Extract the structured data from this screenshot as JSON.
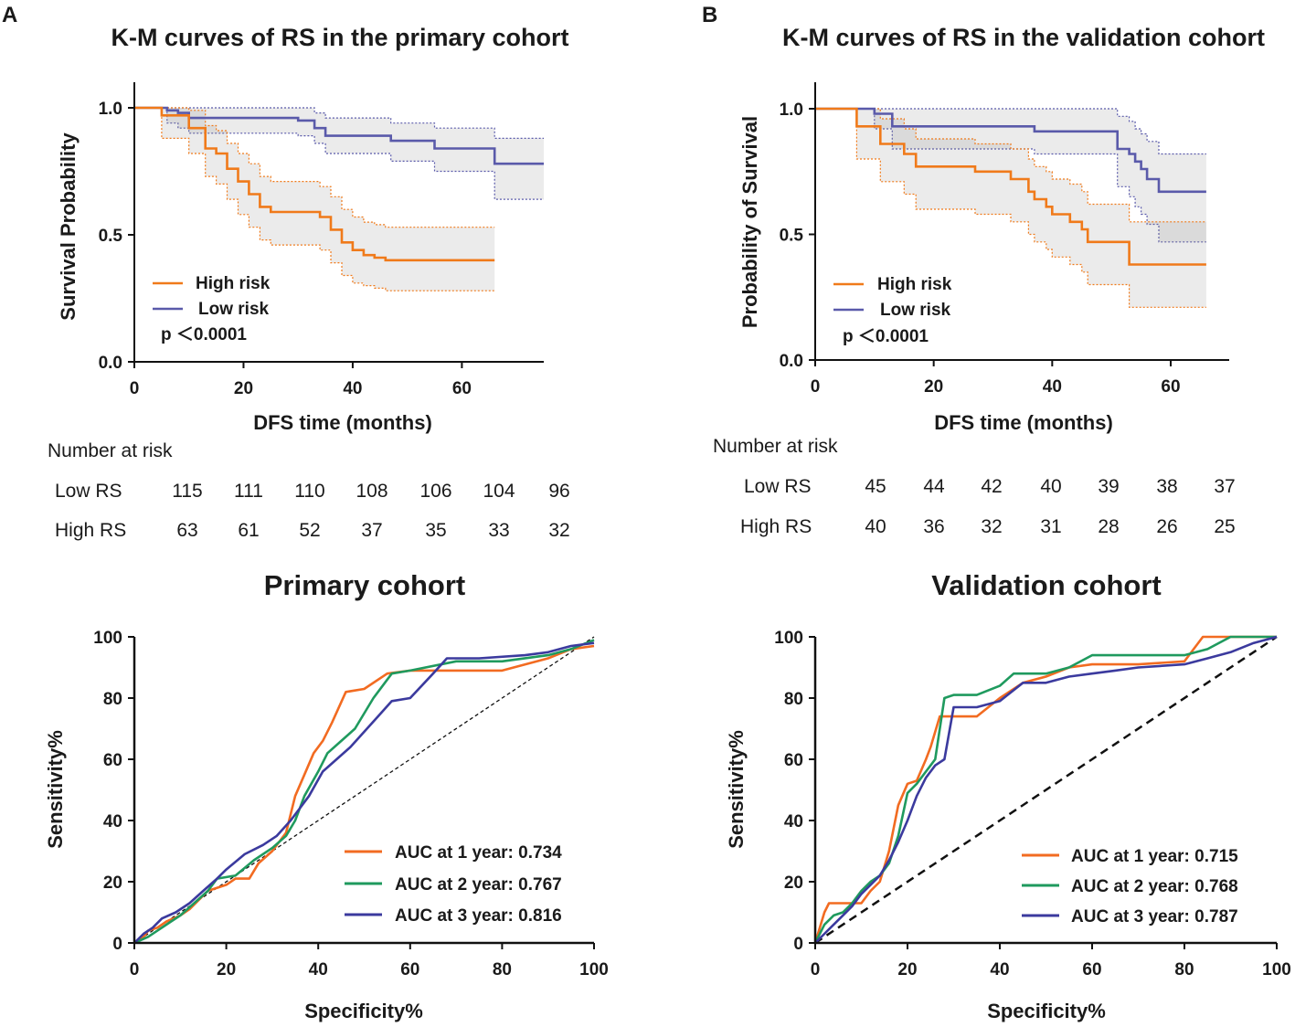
{
  "panels": {
    "A": {
      "letter": "A",
      "km": {
        "title": "K-M curves of RS in the primary cohort",
        "xlabel": "DFS time (months)",
        "ylabel": "Survival Probability",
        "xlim": [
          0,
          75
        ],
        "ylim": [
          0,
          1.05
        ],
        "xticks": [
          "0",
          "20",
          "40",
          "60"
        ],
        "yticks": [
          "0.0",
          "0.5",
          "1.0"
        ],
        "pvalue": "p ＜0.0001",
        "legend": [
          {
            "name": "High risk",
            "color": "#f07a1a"
          },
          {
            "name": "Low risk",
            "color": "#5a5aaa"
          }
        ],
        "risk_table": {
          "header": "Number at risk",
          "rows": [
            {
              "label": "Low RS",
              "values": [
                "115",
                "111",
                "110",
                "108",
                "106",
                "104",
                "96"
              ]
            },
            {
              "label": "High RS",
              "values": [
                "63",
                "61",
                "52",
                "37",
                "35",
                "33",
                "32"
              ]
            }
          ]
        }
      },
      "roc": {
        "title": "Primary cohort",
        "xlabel": "Specificity%",
        "ylabel": "Sensitivity%",
        "xticks": [
          "0",
          "20",
          "40",
          "60",
          "80",
          "100"
        ],
        "yticks": [
          "0",
          "20",
          "40",
          "60",
          "80",
          "100"
        ],
        "legend": [
          {
            "label": "AUC at 1 year: 0.734",
            "color": "#f26b21"
          },
          {
            "label": "AUC at 2 year: 0.767",
            "color": "#1f9a5e"
          },
          {
            "label": "AUC at 3 year: 0.816",
            "color": "#3b3a9e"
          }
        ]
      }
    },
    "B": {
      "letter": "B",
      "km": {
        "title": "K-M curves of RS in the validation cohort",
        "xlabel": "DFS time (months)",
        "ylabel": "Probability of Survival",
        "xlim": [
          0,
          68
        ],
        "ylim": [
          0,
          1.05
        ],
        "xticks": [
          "0",
          "20",
          "40",
          "60"
        ],
        "yticks": [
          "0.0",
          "0.5",
          "1.0"
        ],
        "pvalue": "p ＜0.0001",
        "legend": [
          {
            "name": "High risk",
            "color": "#f07a1a"
          },
          {
            "name": "Low risk",
            "color": "#5a5aaa"
          }
        ],
        "risk_table": {
          "header": "Number at risk",
          "rows": [
            {
              "label": "Low RS",
              "values": [
                "45",
                "44",
                "42",
                "40",
                "39",
                "38",
                "37"
              ]
            },
            {
              "label": "High RS",
              "values": [
                "40",
                "36",
                "32",
                "31",
                "28",
                "26",
                "25"
              ]
            }
          ]
        }
      },
      "roc": {
        "title": "Validation cohort",
        "xlabel": "Specificity%",
        "ylabel": "Sensitivity%",
        "xticks": [
          "0",
          "20",
          "40",
          "60",
          "80",
          "100"
        ],
        "yticks": [
          "0",
          "20",
          "40",
          "60",
          "80",
          "100"
        ],
        "legend": [
          {
            "label": "AUC at 1 year: 0.715",
            "color": "#f26b21"
          },
          {
            "label": "AUC at 2 year: 0.768",
            "color": "#1f9a5e"
          },
          {
            "label": "AUC at 3 year: 0.787",
            "color": "#3b3a9e"
          }
        ]
      }
    }
  },
  "chart_data": [
    {
      "type": "line",
      "id": "km-primary",
      "title": "K-M curves of RS in the primary cohort",
      "xlabel": "DFS time (months)",
      "ylabel": "Survival Probability",
      "xlim": [
        0,
        75
      ],
      "ylim": [
        0,
        1.05
      ],
      "series": [
        {
          "name": "Low risk",
          "color": "#5a5aaa",
          "step": true,
          "x": [
            0,
            6,
            8,
            10,
            30,
            33,
            35,
            47,
            55,
            66,
            75
          ],
          "y": [
            1.0,
            0.99,
            0.98,
            0.96,
            0.95,
            0.92,
            0.89,
            0.87,
            0.84,
            0.78,
            0.78
          ],
          "ci_upper": [
            1.0,
            1.0,
            1.0,
            1.0,
            1.0,
            0.98,
            0.96,
            0.94,
            0.92,
            0.88,
            0.88
          ],
          "ci_lower": [
            1.0,
            0.94,
            0.92,
            0.9,
            0.89,
            0.86,
            0.82,
            0.79,
            0.75,
            0.64,
            0.64
          ]
        },
        {
          "name": "High risk",
          "color": "#f07a1a",
          "step": true,
          "x": [
            0,
            5,
            10,
            13,
            15,
            17,
            19,
            21,
            23,
            25,
            28,
            31,
            34,
            36,
            38,
            40,
            42,
            44,
            46,
            66
          ],
          "y": [
            1.0,
            0.97,
            0.92,
            0.84,
            0.82,
            0.76,
            0.71,
            0.66,
            0.61,
            0.59,
            0.59,
            0.59,
            0.57,
            0.52,
            0.47,
            0.44,
            0.42,
            0.41,
            0.4,
            0.4
          ],
          "ci_upper": [
            1.0,
            1.0,
            0.99,
            0.93,
            0.91,
            0.86,
            0.82,
            0.78,
            0.73,
            0.71,
            0.71,
            0.71,
            0.69,
            0.65,
            0.6,
            0.57,
            0.55,
            0.54,
            0.53,
            0.53
          ],
          "ci_lower": [
            1.0,
            0.88,
            0.82,
            0.73,
            0.7,
            0.64,
            0.58,
            0.53,
            0.48,
            0.46,
            0.46,
            0.46,
            0.44,
            0.39,
            0.34,
            0.31,
            0.3,
            0.29,
            0.28,
            0.28
          ]
        }
      ]
    },
    {
      "type": "line",
      "id": "km-validation",
      "title": "K-M curves of RS in the validation cohort",
      "xlabel": "DFS time (months)",
      "ylabel": "Probability of Survival",
      "xlim": [
        0,
        68
      ],
      "ylim": [
        0,
        1.05
      ],
      "series": [
        {
          "name": "Low risk",
          "color": "#5a5aaa",
          "step": true,
          "x": [
            0,
            10,
            13,
            37,
            51,
            53,
            54,
            55,
            56,
            58,
            66
          ],
          "y": [
            1.0,
            0.98,
            0.93,
            0.91,
            0.84,
            0.82,
            0.79,
            0.76,
            0.72,
            0.67,
            0.67
          ],
          "ci_upper": [
            1.0,
            1.0,
            1.0,
            1.0,
            0.97,
            0.95,
            0.92,
            0.9,
            0.87,
            0.82,
            0.82
          ],
          "ci_lower": [
            1.0,
            0.92,
            0.84,
            0.82,
            0.69,
            0.65,
            0.61,
            0.58,
            0.54,
            0.47,
            0.47
          ],
          "step_note": "drawn as stepped line"
        },
        {
          "name": "High risk",
          "color": "#f07a1a",
          "step": true,
          "x": [
            0,
            7,
            11,
            15,
            17,
            27,
            33,
            36,
            37,
            39,
            40,
            43,
            45,
            46,
            53,
            66
          ],
          "y": [
            1.0,
            0.93,
            0.86,
            0.82,
            0.77,
            0.75,
            0.72,
            0.67,
            0.64,
            0.61,
            0.58,
            0.55,
            0.52,
            0.47,
            0.38,
            0.38
          ],
          "ci_upper": [
            1.0,
            1.0,
            0.96,
            0.92,
            0.88,
            0.86,
            0.84,
            0.8,
            0.77,
            0.75,
            0.72,
            0.7,
            0.67,
            0.62,
            0.55,
            0.55
          ],
          "ci_lower": [
            1.0,
            0.8,
            0.71,
            0.66,
            0.6,
            0.58,
            0.55,
            0.5,
            0.47,
            0.44,
            0.41,
            0.38,
            0.35,
            0.3,
            0.21,
            0.21
          ]
        }
      ]
    },
    {
      "type": "line",
      "id": "roc-primary",
      "title": "Primary cohort",
      "xlabel": "Specificity%",
      "ylabel": "Sensitivity%",
      "xlim": [
        0,
        100
      ],
      "ylim": [
        0,
        100
      ],
      "reference_line": [
        [
          0,
          0
        ],
        [
          100,
          100
        ]
      ],
      "series": [
        {
          "name": "AUC at 1 year: 0.734",
          "color": "#f26b21",
          "x": [
            0,
            2,
            3,
            5,
            7,
            10,
            12,
            14,
            16,
            20,
            22,
            25,
            27,
            30,
            33,
            35,
            37,
            39,
            41,
            43,
            46,
            50,
            55,
            60,
            70,
            80,
            90,
            95,
            100
          ],
          "y": [
            0,
            2,
            4,
            5,
            7,
            9,
            11,
            14,
            17,
            19,
            21,
            21,
            26,
            30,
            36,
            48,
            55,
            62,
            66,
            72,
            82,
            83,
            88,
            89,
            89,
            89,
            93,
            96,
            97
          ]
        },
        {
          "name": "AUC at 2 year: 0.767",
          "color": "#1f9a5e",
          "x": [
            0,
            3,
            5,
            8,
            10,
            13,
            16,
            18,
            22,
            26,
            30,
            33,
            35,
            37,
            40,
            42,
            45,
            48,
            52,
            56,
            60,
            70,
            80,
            90,
            95,
            100
          ],
          "y": [
            0,
            2,
            4,
            7,
            9,
            13,
            17,
            21,
            22,
            27,
            31,
            35,
            40,
            48,
            56,
            62,
            66,
            70,
            80,
            88,
            89,
            92,
            92,
            94,
            96,
            99
          ]
        },
        {
          "name": "AUC at 3 year: 0.816",
          "color": "#3b3a9e",
          "x": [
            0,
            2,
            4,
            6,
            9,
            12,
            15,
            18,
            20,
            24,
            28,
            31,
            34,
            36,
            38,
            41,
            44,
            47,
            50,
            53,
            56,
            60,
            65,
            68,
            75,
            85,
            90,
            95,
            100
          ],
          "y": [
            0,
            3,
            5,
            8,
            10,
            13,
            17,
            21,
            24,
            29,
            32,
            35,
            40,
            44,
            48,
            56,
            60,
            64,
            69,
            74,
            79,
            80,
            88,
            93,
            93,
            94,
            95,
            97,
            98
          ]
        }
      ]
    },
    {
      "type": "line",
      "id": "roc-validation",
      "title": "Validation cohort",
      "xlabel": "Specificity%",
      "ylabel": "Sensitivity%",
      "xlim": [
        0,
        100
      ],
      "ylim": [
        0,
        100
      ],
      "reference_line": [
        [
          0,
          0
        ],
        [
          100,
          100
        ]
      ],
      "series": [
        {
          "name": "AUC at 1 year: 0.715",
          "color": "#f26b21",
          "x": [
            0,
            2,
            3,
            8,
            10,
            12,
            14,
            16,
            18,
            20,
            22,
            24,
            25,
            27,
            35,
            40,
            42,
            45,
            50,
            55,
            60,
            70,
            80,
            82,
            84,
            90,
            100
          ],
          "y": [
            0,
            10,
            13,
            13,
            13,
            17,
            20,
            30,
            45,
            52,
            53,
            60,
            64,
            74,
            74,
            80,
            82,
            85,
            87,
            90,
            91,
            91,
            92,
            96,
            100,
            100,
            100
          ]
        },
        {
          "name": "AUC at 2 year: 0.768",
          "color": "#1f9a5e",
          "x": [
            0,
            2,
            4,
            6,
            8,
            10,
            12,
            14,
            16,
            18,
            20,
            22,
            24,
            26,
            28,
            30,
            35,
            40,
            43,
            50,
            55,
            60,
            70,
            80,
            85,
            90,
            100
          ],
          "y": [
            0,
            6,
            9,
            10,
            13,
            17,
            20,
            22,
            26,
            35,
            49,
            52,
            56,
            60,
            80,
            81,
            81,
            84,
            88,
            88,
            90,
            94,
            94,
            94,
            96,
            100,
            100
          ]
        },
        {
          "name": "AUC at 3 year: 0.787",
          "color": "#3b3a9e",
          "x": [
            0,
            2,
            4,
            6,
            8,
            10,
            12,
            14,
            16,
            18,
            20,
            22,
            24,
            26,
            28,
            30,
            35,
            40,
            45,
            50,
            55,
            60,
            65,
            70,
            80,
            85,
            90,
            95,
            100
          ],
          "y": [
            0,
            3,
            6,
            9,
            12,
            16,
            19,
            22,
            27,
            33,
            40,
            48,
            54,
            58,
            60,
            77,
            77,
            79,
            85,
            85,
            87,
            88,
            89,
            90,
            91,
            93,
            95,
            98,
            100
          ]
        }
      ]
    }
  ]
}
